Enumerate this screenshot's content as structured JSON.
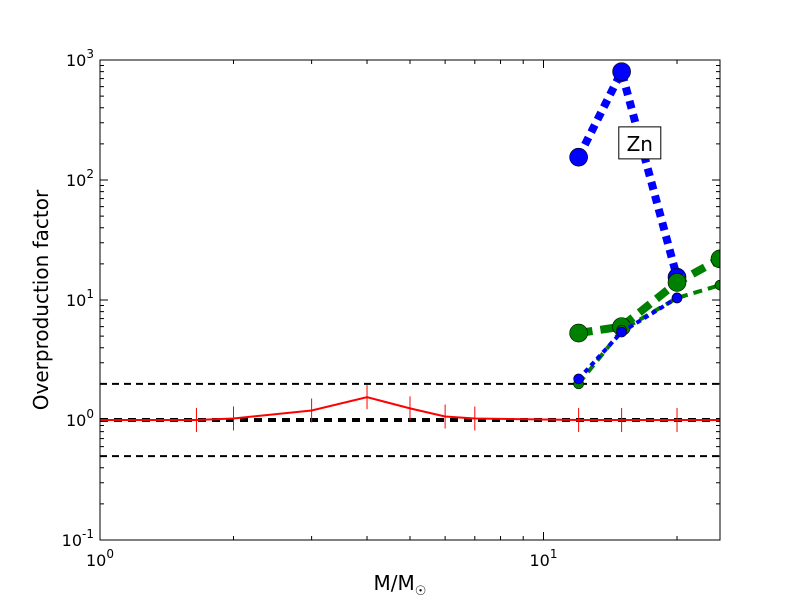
{
  "chart_data": {
    "type": "line",
    "xlabel": "M/M",
    "xlabel_sub": "☉",
    "ylabel": "Overproduction factor",
    "xscale": "log",
    "yscale": "log",
    "xlim": [
      1,
      25
    ],
    "ylim": [
      0.1,
      1000
    ],
    "xticks": [
      {
        "base": "10",
        "exp": "0",
        "value": 1
      },
      {
        "base": "10",
        "exp": "1",
        "value": 10
      }
    ],
    "yticks": [
      {
        "base": "10",
        "exp": "-1",
        "value": 0.1
      },
      {
        "base": "10",
        "exp": "0",
        "value": 1
      },
      {
        "base": "10",
        "exp": "1",
        "value": 10
      },
      {
        "base": "10",
        "exp": "2",
        "value": 100
      },
      {
        "base": "10",
        "exp": "3",
        "value": 1000
      }
    ],
    "annotation": "Zn",
    "hlines": [
      0.5,
      1,
      2
    ],
    "series": [
      {
        "color": "#ff0000",
        "style": "solid",
        "x": [
          1,
          1.65,
          2,
          3,
          4,
          5,
          6,
          7,
          12,
          15,
          20,
          25
        ],
        "y": [
          1.0,
          1.0,
          1.03,
          1.2,
          1.55,
          1.25,
          1.07,
          1.03,
          1.0,
          1.0,
          1.0,
          1.0
        ],
        "errorbars": true
      },
      {
        "color": "#0000ff",
        "style": "dotted-thick",
        "marker": "large",
        "x": [
          12,
          15,
          20
        ],
        "y": [
          155,
          800,
          15.5
        ]
      },
      {
        "color": "#008000",
        "style": "dashed-thick",
        "marker": "large",
        "x": [
          12,
          15,
          20,
          25
        ],
        "y": [
          5.3,
          6.0,
          14,
          22
        ]
      },
      {
        "color": "#008000",
        "style": "dashed",
        "marker": "small",
        "x": [
          12,
          15,
          20,
          25
        ],
        "y": [
          2.0,
          5.6,
          10.4,
          13.3
        ]
      },
      {
        "color": "#0000ff",
        "style": "dotted",
        "marker": "small",
        "x": [
          12,
          15,
          20
        ],
        "y": [
          2.2,
          5.4,
          10.4
        ]
      }
    ]
  }
}
